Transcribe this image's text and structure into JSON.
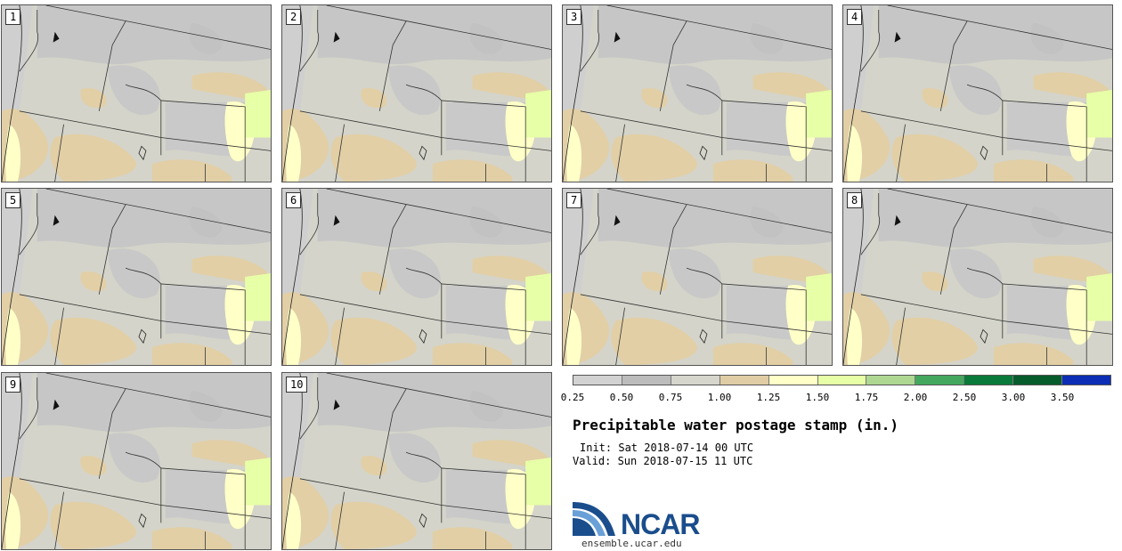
{
  "panels": [
    {
      "label": "1"
    },
    {
      "label": "2"
    },
    {
      "label": "3"
    },
    {
      "label": "4"
    },
    {
      "label": "5"
    },
    {
      "label": "6"
    },
    {
      "label": "7"
    },
    {
      "label": "8"
    },
    {
      "label": "9"
    },
    {
      "label": "10"
    }
  ],
  "legend": {
    "colors": [
      "#d2d2d2",
      "#bcbcbc",
      "#d6d6cc",
      "#e0cda5",
      "#ffffc8",
      "#e7ffa6",
      "#aed891",
      "#43a85e",
      "#0a7a3a",
      "#075c2c",
      "#0b2eb4"
    ],
    "ticks": [
      "0.25",
      "0.50",
      "0.75",
      "1.00",
      "1.25",
      "1.50",
      "1.75",
      "2.00",
      "2.50",
      "3.00",
      "3.50"
    ]
  },
  "title": "Precipitable water postage stamp (in.)",
  "init": "Init: Sat 2018-07-14 00 UTC",
  "valid": "Valid: Sun 2018-07-15 11 UTC",
  "logo": {
    "name": "NCAR",
    "url": "ensemble.ucar.edu"
  }
}
